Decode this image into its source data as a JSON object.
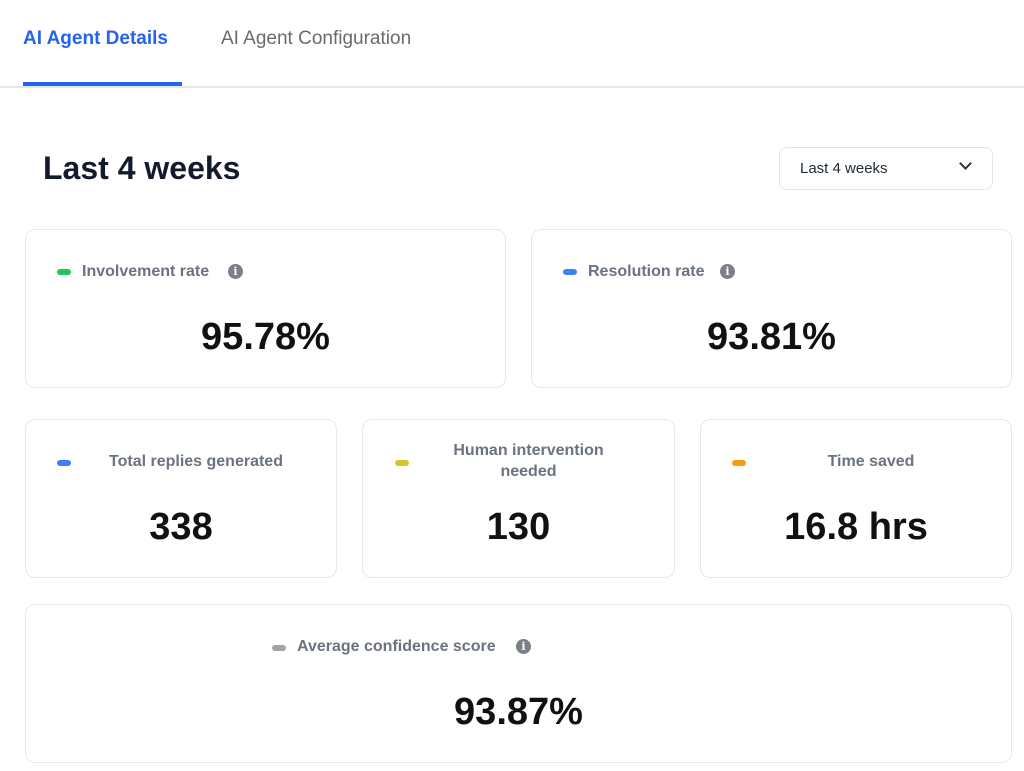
{
  "tabs": [
    {
      "label": "AI Agent Details",
      "active": true
    },
    {
      "label": "AI Agent Configuration",
      "active": false
    }
  ],
  "heading": "Last 4 weeks",
  "period_select": {
    "value": "Last 4 weeks"
  },
  "metrics": [
    {
      "label": "Involvement rate",
      "value": "95.78%",
      "color": "#22c55e",
      "info": true
    },
    {
      "label": "Resolution rate",
      "value": "93.81%",
      "color": "#3b82f6",
      "info": true
    },
    {
      "label": "Total replies generated",
      "value": "338",
      "color": "#3b82f6"
    },
    {
      "label": "Human intervention needed",
      "value": "130",
      "color": "#d4c62a"
    },
    {
      "label": "Time saved",
      "value": "16.8 hrs",
      "color": "#f59e0b"
    },
    {
      "label": "Average confidence score",
      "value": "93.87%",
      "color": "#a3a3a3",
      "info": true
    }
  ]
}
